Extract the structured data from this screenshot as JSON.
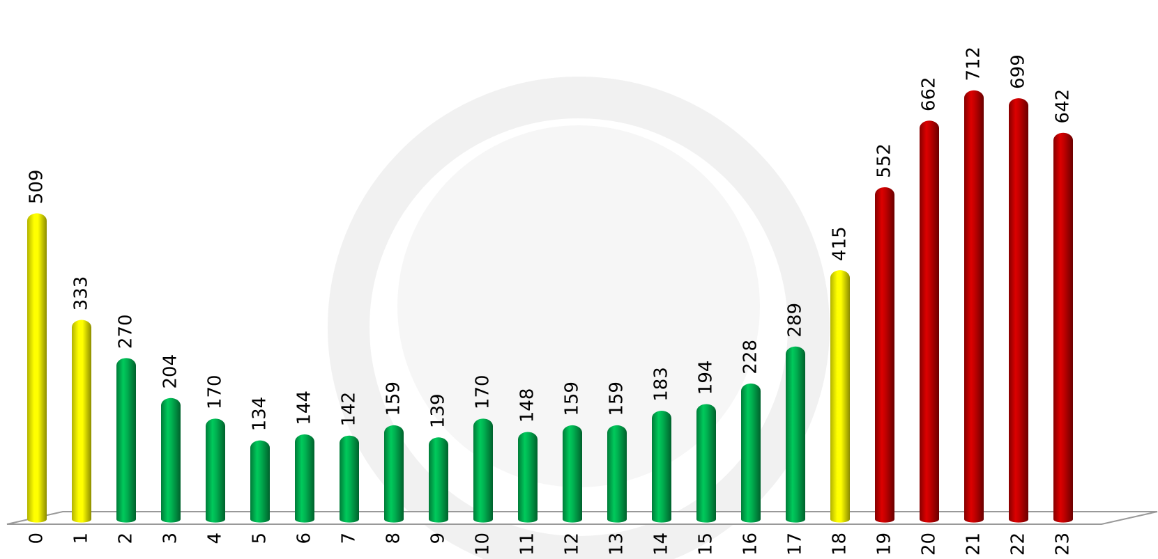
{
  "chart_data": {
    "type": "bar",
    "categories": [
      "0",
      "1",
      "2",
      "3",
      "4",
      "5",
      "6",
      "7",
      "8",
      "9",
      "10",
      "11",
      "12",
      "13",
      "14",
      "15",
      "16",
      "17",
      "18",
      "19",
      "20",
      "21",
      "22",
      "23"
    ],
    "values": [
      509,
      333,
      270,
      204,
      170,
      134,
      144,
      142,
      159,
      139,
      170,
      148,
      159,
      159,
      183,
      194,
      228,
      289,
      415,
      552,
      662,
      712,
      699,
      642
    ],
    "colors": [
      "#ffff00",
      "#ffff00",
      "#00b050",
      "#00b050",
      "#00b050",
      "#00b050",
      "#00b050",
      "#00b050",
      "#00b050",
      "#00b050",
      "#00b050",
      "#00b050",
      "#00b050",
      "#00b050",
      "#00b050",
      "#00b050",
      "#00b050",
      "#00b050",
      "#ffff00",
      "#c00000",
      "#c00000",
      "#c00000",
      "#c00000",
      "#c00000"
    ]
  }
}
